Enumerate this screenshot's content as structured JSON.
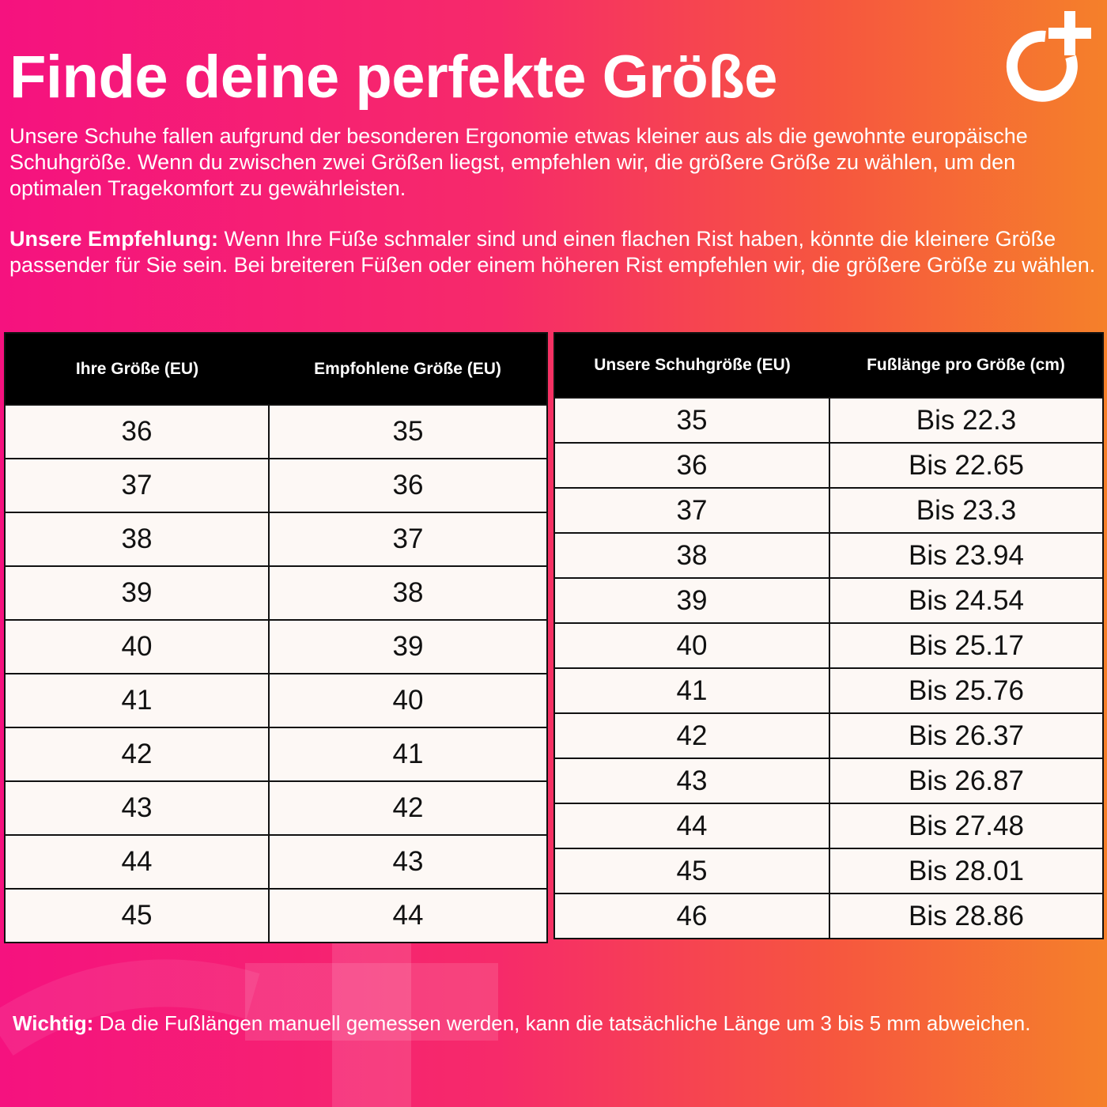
{
  "title": "Finde deine perfekte Größe",
  "intro": "Unsere Schuhe fallen aufgrund der besonderen Ergonomie etwas kleiner aus als die gewohnte europäische Schuhgröße. Wenn du zwischen zwei Größen liegst, empfehlen wir, die größere Größe zu wählen, um den optimalen Tragekomfort zu gewährleisten.",
  "recommendation": {
    "label": "Unsere Empfehlung:",
    "text": " Wenn Ihre Füße schmaler sind und einen flachen Rist haben, könnte die kleinere Größe passender für Sie sein. Bei breiteren Füßen oder einem höheren Rist empfehlen wir, die größere Größe zu wählen."
  },
  "size_table": {
    "headers": [
      "Ihre Größe (EU)",
      "Empfohlene Größe (EU)"
    ],
    "rows": [
      [
        "36",
        "35"
      ],
      [
        "37",
        "36"
      ],
      [
        "38",
        "37"
      ],
      [
        "39",
        "38"
      ],
      [
        "40",
        "39"
      ],
      [
        "41",
        "40"
      ],
      [
        "42",
        "41"
      ],
      [
        "43",
        "42"
      ],
      [
        "44",
        "43"
      ],
      [
        "45",
        "44"
      ]
    ]
  },
  "length_table": {
    "headers": [
      "Unsere Schuhgröße (EU)",
      "Fußlänge pro Größe (cm)"
    ],
    "rows": [
      [
        "35",
        "Bis 22.3"
      ],
      [
        "36",
        "Bis 22.65"
      ],
      [
        "37",
        "Bis 23.3"
      ],
      [
        "38",
        "Bis 23.94"
      ],
      [
        "39",
        "Bis 24.54"
      ],
      [
        "40",
        "Bis 25.17"
      ],
      [
        "41",
        "Bis 25.76"
      ],
      [
        "42",
        "Bis 26.37"
      ],
      [
        "43",
        "Bis 26.87"
      ],
      [
        "44",
        "Bis 27.48"
      ],
      [
        "45",
        "Bis 28.01"
      ],
      [
        "46",
        "Bis 28.86"
      ]
    ]
  },
  "note": {
    "label": "Wichtig:",
    "text": " Da die Fußlängen manuell gemessen werden, kann die tatsächliche Länge um 3 bis 5 mm abweichen."
  },
  "logo_icon": "circle-plus-logo",
  "colors": {
    "gradient_start": "#f5127f",
    "gradient_end": "#f5802a",
    "header_bg": "#000000",
    "cell_bg": "#fdf8f5"
  }
}
